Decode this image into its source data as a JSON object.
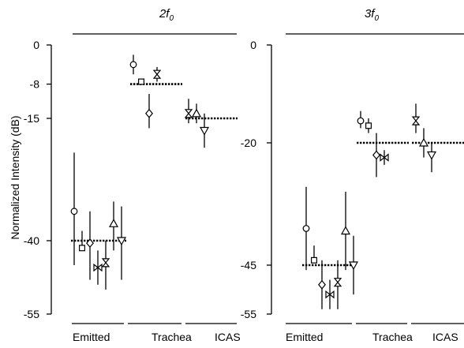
{
  "chart_data": {
    "type": "scatter",
    "ylabel": "Normalized Intensity (dB)",
    "panels": [
      {
        "title": "2f",
        "title_sub": "0",
        "yticks": [
          0,
          -8,
          -15,
          -40,
          -55
        ],
        "ylim": [
          -55,
          0
        ],
        "groups": [
          {
            "name": "Emitted",
            "mean": -40,
            "points": [
              {
                "marker": "circle",
                "y": -34,
                "lo": -45,
                "hi": -22
              },
              {
                "marker": "square",
                "y": -41.5,
                "lo": -41.5,
                "hi": -38
              },
              {
                "marker": "diamond",
                "y": -40.5,
                "lo": -48,
                "hi": -34
              },
              {
                "marker": "bowtie-h",
                "y": -45.5,
                "lo": -49,
                "hi": -42
              },
              {
                "marker": "bowtie-v",
                "y": -44.5,
                "lo": -50,
                "hi": -40
              },
              {
                "marker": "triangle-up",
                "y": -36.5,
                "lo": -42,
                "hi": -32
              },
              {
                "marker": "triangle-down",
                "y": -40,
                "lo": -48,
                "hi": -33
              }
            ]
          },
          {
            "name": "Trachea",
            "mean": -8,
            "points": [
              {
                "marker": "circle",
                "y": -4,
                "lo": -6,
                "hi": -2
              },
              {
                "marker": "square",
                "y": -7.5,
                "lo": -7.5,
                "hi": -7.5
              },
              {
                "marker": "diamond",
                "y": -14,
                "lo": -17,
                "hi": -10
              },
              {
                "marker": "bowtie-v",
                "y": -6,
                "lo": -7.5,
                "hi": -4.5
              }
            ]
          },
          {
            "name": "ICAS",
            "mean": -15,
            "points": [
              {
                "marker": "bowtie-v",
                "y": -14,
                "lo": -16,
                "hi": -11
              },
              {
                "marker": "triangle-up",
                "y": -14,
                "lo": -16,
                "hi": -12
              },
              {
                "marker": "triangle-down",
                "y": -17.5,
                "lo": -21,
                "hi": -14
              }
            ]
          }
        ]
      },
      {
        "title": "3f",
        "title_sub": "0",
        "yticks": [
          0,
          -20,
          -45,
          -55
        ],
        "ylim": [
          -55,
          0
        ],
        "groups": [
          {
            "name": "Emitted",
            "mean": -45,
            "points": [
              {
                "marker": "circle",
                "y": -37.5,
                "lo": -46,
                "hi": -29
              },
              {
                "marker": "square",
                "y": -44,
                "lo": -44,
                "hi": -41
              },
              {
                "marker": "diamond",
                "y": -49,
                "lo": -54,
                "hi": -44
              },
              {
                "marker": "bowtie-h",
                "y": -51,
                "lo": -54,
                "hi": -48
              },
              {
                "marker": "bowtie-v",
                "y": -48.5,
                "lo": -54,
                "hi": -44
              },
              {
                "marker": "triangle-up",
                "y": -38,
                "lo": -46,
                "hi": -30
              },
              {
                "marker": "triangle-down",
                "y": -45,
                "lo": -51,
                "hi": -39
              }
            ]
          },
          {
            "name": "Trachea",
            "mean": -20,
            "points": [
              {
                "marker": "circle",
                "y": -15.5,
                "lo": -17,
                "hi": -13.5
              },
              {
                "marker": "square",
                "y": -16.5,
                "lo": -18,
                "hi": -15
              },
              {
                "marker": "diamond",
                "y": -22.5,
                "lo": -27,
                "hi": -18
              },
              {
                "marker": "bowtie-h",
                "y": -23,
                "lo": -24.5,
                "hi": -21.5
              }
            ]
          },
          {
            "name": "ICAS",
            "mean": -20,
            "points": [
              {
                "marker": "bowtie-v",
                "y": -15.5,
                "lo": -18,
                "hi": -12
              },
              {
                "marker": "triangle-up",
                "y": -20,
                "lo": -23,
                "hi": -17
              },
              {
                "marker": "triangle-down",
                "y": -22.5,
                "lo": -26,
                "hi": -20
              }
            ]
          }
        ]
      }
    ]
  }
}
